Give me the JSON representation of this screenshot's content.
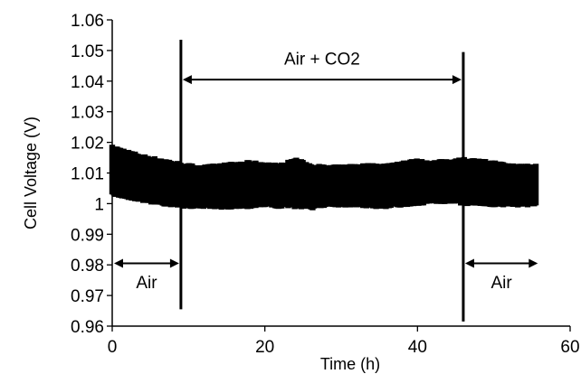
{
  "chart_data": {
    "type": "scatter",
    "xlabel": "Time (h)",
    "ylabel": "Cell Voltage (V)",
    "xlim": [
      0,
      60
    ],
    "ylim": [
      0.96,
      1.06
    ],
    "xticks": [
      0,
      20,
      40,
      60
    ],
    "yticks": [
      0.96,
      0.97,
      0.98,
      0.99,
      1,
      1.01,
      1.02,
      1.03,
      1.04,
      1.05,
      1.06
    ],
    "ytick_labels": [
      "0.96",
      "0.97",
      "0.98",
      "0.99",
      "1",
      "1.01",
      "1.02",
      "1.03",
      "1.04",
      "1.05",
      "1.06"
    ],
    "grid": false,
    "series": [
      {
        "x": [
          0,
          2,
          4,
          6,
          8,
          10,
          12,
          14,
          16,
          18,
          20,
          22,
          24,
          26,
          28,
          30,
          32,
          34,
          36,
          38,
          40,
          42,
          44,
          46,
          48,
          50,
          52,
          54,
          55.5
        ],
        "y": [
          1.0105,
          1.009,
          1.008,
          1.007,
          1.0065,
          1.0055,
          1.005,
          1.0055,
          1.006,
          1.0065,
          1.006,
          1.0055,
          1.0065,
          1.0055,
          1.0055,
          1.0055,
          1.006,
          1.006,
          1.006,
          1.0065,
          1.007,
          1.007,
          1.0075,
          1.0075,
          1.007,
          1.0065,
          1.006,
          1.006,
          1.006
        ],
        "y_low": [
          1.003,
          1.002,
          1.001,
          1.0,
          0.9995,
          0.999,
          0.999,
          0.9985,
          0.999,
          0.999,
          0.9995,
          0.999,
          0.999,
          0.9985,
          0.9995,
          0.9995,
          0.9995,
          0.999,
          0.999,
          0.9995,
          1.0,
          1.0005,
          1.0005,
          1.0,
          1.0,
          0.9995,
          0.9995,
          0.9995,
          0.9995
        ],
        "y_high": [
          1.0185,
          1.017,
          1.0155,
          1.0145,
          1.0135,
          1.0125,
          1.012,
          1.0125,
          1.013,
          1.0135,
          1.013,
          1.0125,
          1.0145,
          1.0125,
          1.012,
          1.012,
          1.0125,
          1.0125,
          1.0125,
          1.0135,
          1.014,
          1.0135,
          1.014,
          1.0145,
          1.014,
          1.0135,
          1.0125,
          1.0125,
          1.0125
        ],
        "color": "#000000"
      }
    ],
    "vlines": [
      {
        "x": 9,
        "y_from": 0.9655,
        "y_to": 1.0535
      },
      {
        "x": 46,
        "y_from": 0.9615,
        "y_to": 1.0495
      }
    ],
    "annotations": [
      {
        "label": "Air + CO2",
        "x_from": 9,
        "x_to": 46,
        "y_arrow": 1.0405,
        "y_text": 1.0475
      },
      {
        "label": "Air",
        "x_from": 0,
        "x_to": 9,
        "y_arrow": 0.9805,
        "y_text": 0.9745
      },
      {
        "label": "Air",
        "x_from": 46,
        "x_to": 56,
        "y_arrow": 0.9805,
        "y_text": 0.9745
      }
    ]
  }
}
